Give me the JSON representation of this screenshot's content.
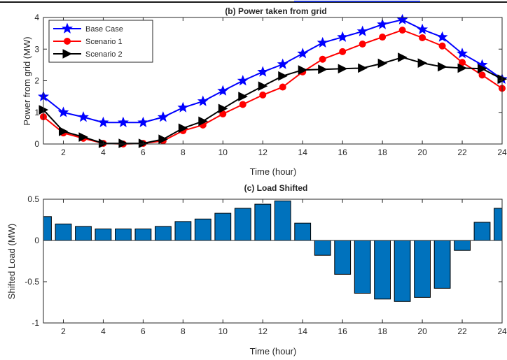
{
  "chart_data": [
    {
      "type": "line",
      "title": "(b) Power taken from grid",
      "xlabel": "Time (hour)",
      "ylabel": "Power from grid (MW)",
      "xlim": [
        1,
        24
      ],
      "ylim": [
        0,
        4
      ],
      "xticks": [
        2,
        4,
        6,
        8,
        10,
        12,
        14,
        16,
        18,
        20,
        22,
        24
      ],
      "yticks": [
        0,
        1,
        2,
        3,
        4
      ],
      "grid": false,
      "legend_position": "top-left",
      "x": [
        1,
        2,
        3,
        4,
        5,
        6,
        7,
        8,
        9,
        10,
        11,
        12,
        13,
        14,
        15,
        16,
        17,
        18,
        19,
        20,
        21,
        22,
        23,
        24
      ],
      "series": [
        {
          "name": "Base Case",
          "color": "#0000ff",
          "marker": "star",
          "values": [
            1.5,
            1.0,
            0.85,
            0.68,
            0.68,
            0.68,
            0.85,
            1.15,
            1.35,
            1.68,
            2.0,
            2.28,
            2.52,
            2.86,
            3.2,
            3.38,
            3.56,
            3.78,
            3.93,
            3.62,
            3.38,
            2.86,
            2.5,
            2.05
          ]
        },
        {
          "name": "Scenario 1",
          "color": "#ff0000",
          "marker": "circle",
          "values": [
            0.86,
            0.35,
            0.18,
            0.02,
            0.0,
            0.02,
            0.1,
            0.42,
            0.6,
            0.95,
            1.25,
            1.55,
            1.8,
            2.28,
            2.68,
            2.92,
            3.16,
            3.38,
            3.6,
            3.36,
            3.1,
            2.58,
            2.18,
            1.76
          ]
        },
        {
          "name": "Scenario 2",
          "color": "#000000",
          "marker": "triangle-right",
          "values": [
            1.08,
            0.4,
            0.22,
            0.02,
            0.02,
            0.02,
            0.15,
            0.5,
            0.72,
            1.12,
            1.5,
            1.83,
            2.15,
            2.34,
            2.36,
            2.38,
            2.4,
            2.55,
            2.74,
            2.56,
            2.44,
            2.4,
            2.38,
            2.05
          ]
        }
      ]
    },
    {
      "type": "bar",
      "title": "(c) Load Shifted",
      "xlabel": "Time (hour)",
      "ylabel": "Shifted Load (MW)",
      "xlim": [
        1,
        24
      ],
      "ylim": [
        -1,
        0.5
      ],
      "xticks": [
        2,
        4,
        6,
        8,
        10,
        12,
        14,
        16,
        18,
        20,
        22,
        24
      ],
      "yticks": [
        -1,
        -0.5,
        0,
        0.5
      ],
      "grid": false,
      "color": "#0072bd",
      "categories": [
        1,
        2,
        3,
        4,
        5,
        6,
        7,
        8,
        9,
        10,
        11,
        12,
        13,
        14,
        15,
        16,
        17,
        18,
        19,
        20,
        21,
        22,
        23,
        24
      ],
      "values": [
        0.29,
        0.2,
        0.17,
        0.14,
        0.14,
        0.14,
        0.17,
        0.23,
        0.26,
        0.33,
        0.39,
        0.44,
        0.48,
        0.21,
        -0.18,
        -0.41,
        -0.64,
        -0.71,
        -0.74,
        -0.69,
        -0.58,
        -0.12,
        0.22,
        0.39
      ]
    }
  ]
}
